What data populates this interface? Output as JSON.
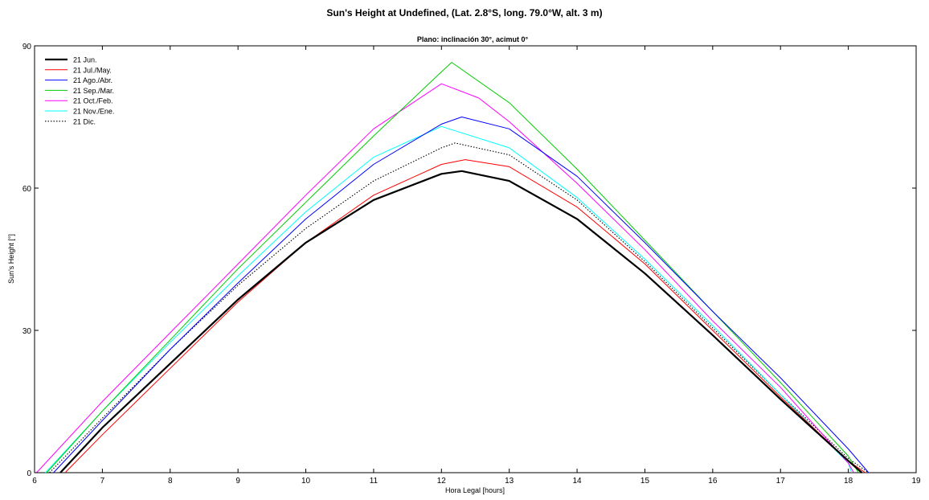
{
  "chart_data": {
    "type": "line",
    "title": "Sun's Height  at  Undefined, (Lat. 2.8°S, long. 79.0°W, alt. 3 m)",
    "subtitle": "Plano: inclinación 30°, acimut 0°",
    "xlabel": "Hora Legal [hours]",
    "ylabel": "Sun's Height  [°]",
    "xlim": [
      6,
      19
    ],
    "ylim": [
      0,
      90
    ],
    "xticks": [
      "6",
      "7",
      "8",
      "9",
      "10",
      "11",
      "12",
      "13",
      "14",
      "15",
      "16",
      "17",
      "18",
      "19"
    ],
    "yticks": [
      "0",
      "30",
      "60",
      "90"
    ],
    "legend_position": "top-left",
    "series": [
      {
        "name": "21 Jun.",
        "color": "#000000",
        "style": "solid-thick",
        "x": [
          6.38,
          7,
          8,
          9,
          10,
          11,
          12,
          12.3,
          13,
          14,
          15,
          16,
          17,
          18,
          18.2
        ],
        "y": [
          0,
          9.5,
          23,
          36.5,
          48.5,
          57.5,
          63,
          63.6,
          61.5,
          53.5,
          42,
          29,
          15.5,
          2.5,
          0
        ]
      },
      {
        "name": "21 Jul./May.",
        "color": "#ff0000",
        "style": "solid",
        "x": [
          6.45,
          7,
          8,
          9,
          10,
          11,
          12,
          12.35,
          13,
          14,
          15,
          16,
          17,
          18,
          18.25
        ],
        "y": [
          0,
          8,
          22,
          36,
          48.5,
          58.5,
          65,
          66,
          64.5,
          56,
          44,
          30,
          16,
          2.5,
          0
        ]
      },
      {
        "name": "21 Ago./Abr.",
        "color": "#0000ff",
        "style": "solid",
        "x": [
          6.28,
          7,
          8,
          9,
          10,
          11,
          12,
          12.3,
          13,
          14,
          15,
          16,
          17,
          18,
          18.3
        ],
        "y": [
          0,
          11,
          26,
          40,
          53.5,
          65,
          73.5,
          75,
          72.5,
          62.5,
          48.5,
          34,
          20,
          5,
          0
        ]
      },
      {
        "name": "21 Sep./Mar.",
        "color": "#00cc00",
        "style": "solid",
        "x": [
          6.18,
          7,
          8,
          9,
          10,
          11,
          12,
          12.15,
          13,
          14,
          15,
          16,
          17,
          18,
          18.15
        ],
        "y": [
          0,
          13,
          28,
          43,
          57,
          71,
          84.5,
          86.5,
          78,
          64,
          49,
          34,
          19,
          3.5,
          0
        ]
      },
      {
        "name": "21 Oct./Feb.",
        "color": "#ff00ff",
        "style": "solid",
        "x": [
          6.03,
          7,
          8,
          9,
          10,
          11,
          12,
          12.55,
          13,
          14,
          15,
          16,
          17,
          18,
          18.08
        ],
        "y": [
          0,
          15,
          29.5,
          44,
          58.5,
          72.5,
          82,
          79,
          74,
          61,
          47,
          32,
          18,
          2,
          0
        ]
      },
      {
        "name": "21 Nov./Ene.",
        "color": "#00ffff",
        "style": "solid",
        "x": [
          6.16,
          7,
          8,
          9,
          10,
          11,
          12,
          13,
          14,
          15,
          16,
          17,
          18,
          18.05
        ],
        "y": [
          0,
          13,
          27.5,
          41.5,
          55,
          66.5,
          73,
          68.5,
          58,
          45,
          31,
          16.5,
          2,
          0
        ]
      },
      {
        "name": "21 Dic.",
        "color": "#000000",
        "style": "dotted",
        "x": [
          6.22,
          7,
          8,
          9,
          10,
          11,
          12,
          12.2,
          13,
          14,
          15,
          16,
          17,
          18,
          18.3
        ],
        "y": [
          0,
          11.5,
          26,
          39.5,
          51.5,
          61.5,
          68.5,
          69.5,
          67,
          57.5,
          44.5,
          30.5,
          16.5,
          3,
          0
        ]
      }
    ]
  }
}
